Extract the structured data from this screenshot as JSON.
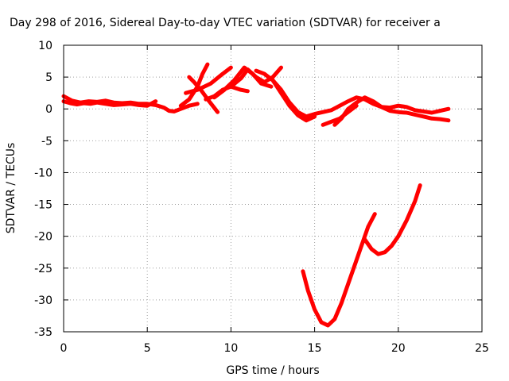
{
  "chart_data": {
    "type": "line",
    "title": "Day 298 of 2016, Sidereal Day-to-day VTEC variation (SDTVAR) for receiver a",
    "xlabel": "GPS time / hours",
    "ylabel": "SDTVAR / TECUs",
    "xlim": [
      0,
      25
    ],
    "ylim": [
      -35,
      10
    ],
    "xticks": [
      0,
      5,
      10,
      15,
      20,
      25
    ],
    "yticks": [
      10,
      5,
      0,
      -5,
      -10,
      -15,
      -20,
      -25,
      -30,
      -35
    ],
    "grid": true,
    "series_color": "#ff0000",
    "series": [
      {
        "x": [
          0,
          0.5,
          1,
          1.5,
          2,
          2.5,
          3,
          3.5,
          4,
          4.5,
          5,
          5.5,
          6,
          6.3,
          6.6,
          7,
          7.5,
          8
        ],
        "y": [
          2,
          1.3,
          1.0,
          1.2,
          1.1,
          1.3,
          1.0,
          0.9,
          1.0,
          0.8,
          0.8,
          0.6,
          0.2,
          -0.3,
          -0.4,
          0,
          0.5,
          0.8
        ]
      },
      {
        "x": [
          0,
          0.4,
          0.8,
          1.2,
          1.6,
          2.0,
          2.5,
          3.0,
          3.5,
          4.0,
          4.5,
          5.0,
          5.5
        ],
        "y": [
          1.2,
          0.9,
          0.7,
          0.9,
          0.8,
          1.0,
          0.8,
          0.6,
          0.7,
          0.8,
          0.6,
          0.5,
          1.2
        ]
      },
      {
        "x": [
          7,
          7.5,
          8,
          8.3,
          8.6
        ],
        "y": [
          0.5,
          1.5,
          3.5,
          5.5,
          7.0
        ]
      },
      {
        "x": [
          7.5,
          7.8,
          8.2,
          8.7,
          9.2
        ],
        "y": [
          5,
          4.2,
          3.0,
          1.2,
          -0.5
        ]
      },
      {
        "x": [
          7.3,
          8.0,
          8.8,
          9.5,
          10.0
        ],
        "y": [
          2.5,
          3.0,
          4.0,
          5.5,
          6.5
        ]
      },
      {
        "x": [
          8.5,
          9.0,
          9.5,
          10.0,
          10.6,
          11.0
        ],
        "y": [
          1.5,
          2.0,
          3.0,
          3.5,
          3.0,
          2.8
        ]
      },
      {
        "x": [
          9.0,
          9.6,
          10.2,
          10.8,
          11.3,
          11.8,
          12.4
        ],
        "y": [
          1.8,
          3.0,
          4.5,
          6.5,
          5.5,
          4.0,
          3.5
        ]
      },
      {
        "x": [
          10.0,
          10.6,
          11.0,
          11.5,
          12.0,
          12.5,
          13.0
        ],
        "y": [
          3.5,
          4.8,
          6.2,
          5.0,
          4.2,
          5.0,
          6.5
        ]
      },
      {
        "x": [
          11.5,
          12.0,
          12.5,
          13.0,
          13.5,
          14.0,
          14.5,
          15.0,
          15.5,
          16.0,
          16.5,
          17.0,
          17.5,
          18.0,
          18.5,
          19.0,
          19.5,
          20.0,
          20.5,
          21.0,
          21.5,
          22.0,
          22.5,
          23.0
        ],
        "y": [
          6.0,
          5.5,
          4.5,
          3.0,
          1.0,
          -0.5,
          -1.2,
          -0.8,
          -0.5,
          -0.2,
          0.5,
          1.2,
          1.8,
          1.5,
          0.8,
          0.3,
          0.2,
          0.5,
          0.3,
          -0.2,
          -0.4,
          -0.6,
          -0.3,
          0.0
        ]
      },
      {
        "x": [
          12.5,
          13.0,
          13.5,
          14.0,
          14.5,
          15.0
        ],
        "y": [
          4.5,
          2.5,
          0.5,
          -1.0,
          -1.8,
          -1.2
        ]
      },
      {
        "x": [
          15.5,
          16.0,
          16.5,
          17.0,
          17.5
        ],
        "y": [
          -2.5,
          -2.0,
          -1.5,
          -0.5,
          0.5
        ]
      },
      {
        "x": [
          16.2,
          16.6,
          17.0,
          17.5,
          18.0,
          18.5,
          19.0,
          19.5,
          20.0,
          20.5,
          21.0,
          21.5,
          22.0,
          22.5,
          23.0
        ],
        "y": [
          -2.5,
          -1.5,
          0.0,
          1.0,
          1.8,
          1.2,
          0.3,
          -0.3,
          -0.5,
          -0.6,
          -0.9,
          -1.2,
          -1.5,
          -1.6,
          -1.8
        ]
      },
      {
        "x": [
          14.3,
          14.6,
          15.0,
          15.4,
          15.8,
          16.2,
          16.6,
          17.0,
          17.4,
          17.8,
          18.2,
          18.6
        ],
        "y": [
          -25.5,
          -28.5,
          -31.5,
          -33.5,
          -34.0,
          -33.0,
          -30.5,
          -27.5,
          -24.5,
          -21.5,
          -18.5,
          -16.5
        ]
      },
      {
        "x": [
          18.0,
          18.4,
          18.8,
          19.2,
          19.6,
          20.0,
          20.5,
          21.0,
          21.3
        ],
        "y": [
          -20.5,
          -22.0,
          -22.8,
          -22.5,
          -21.5,
          -20.0,
          -17.5,
          -14.5,
          -12.0
        ]
      }
    ]
  }
}
